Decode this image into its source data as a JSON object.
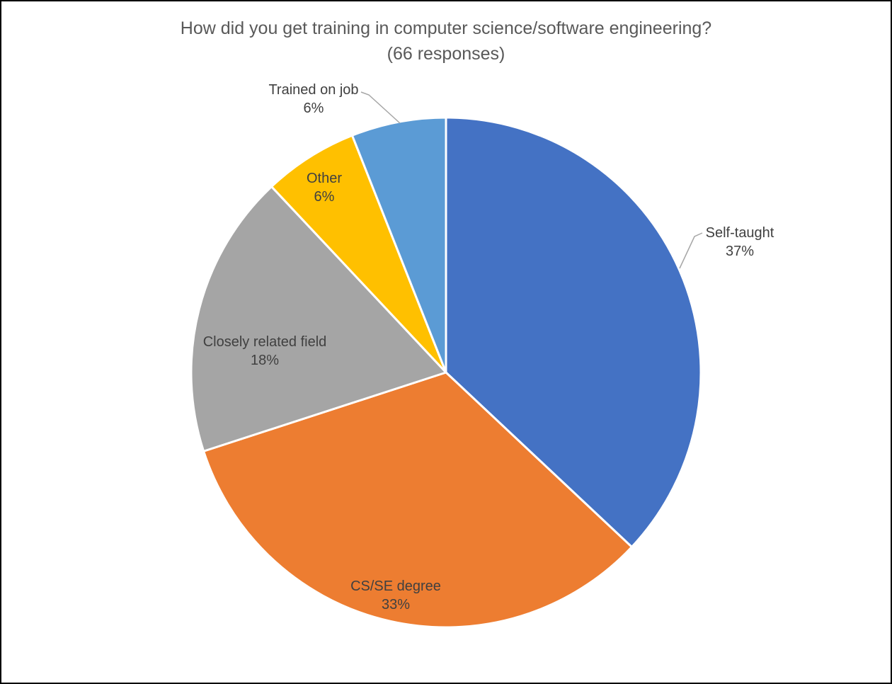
{
  "chart_data": {
    "type": "pie",
    "title": "How did you get training in computer science/software engineering?",
    "subtitle": "(66 responses)",
    "responses": 66,
    "start_angle_deg": 0,
    "direction": "clockwise",
    "legend": "none",
    "slice_border_color": "#FFFFFF",
    "leader_line_color": "#A6A6A6",
    "title_color": "#595959",
    "label_color": "#404040",
    "slices": [
      {
        "label": "Self-taught",
        "pct": 37,
        "pct_label": "37%",
        "color": "#4472C4",
        "label_placement": "outside"
      },
      {
        "label": "CS/SE degree",
        "pct": 33,
        "pct_label": "33%",
        "color": "#ED7D31",
        "label_placement": "inside"
      },
      {
        "label": "Closely related field",
        "pct": 18,
        "pct_label": "18%",
        "color": "#A5A5A5",
        "label_placement": "inside"
      },
      {
        "label": "Other",
        "pct": 6,
        "pct_label": "6%",
        "color": "#FFC000",
        "label_placement": "inside"
      },
      {
        "label": "Trained on job",
        "pct": 6,
        "pct_label": "6%",
        "color": "#5B9BD5",
        "label_placement": "outside"
      }
    ]
  }
}
